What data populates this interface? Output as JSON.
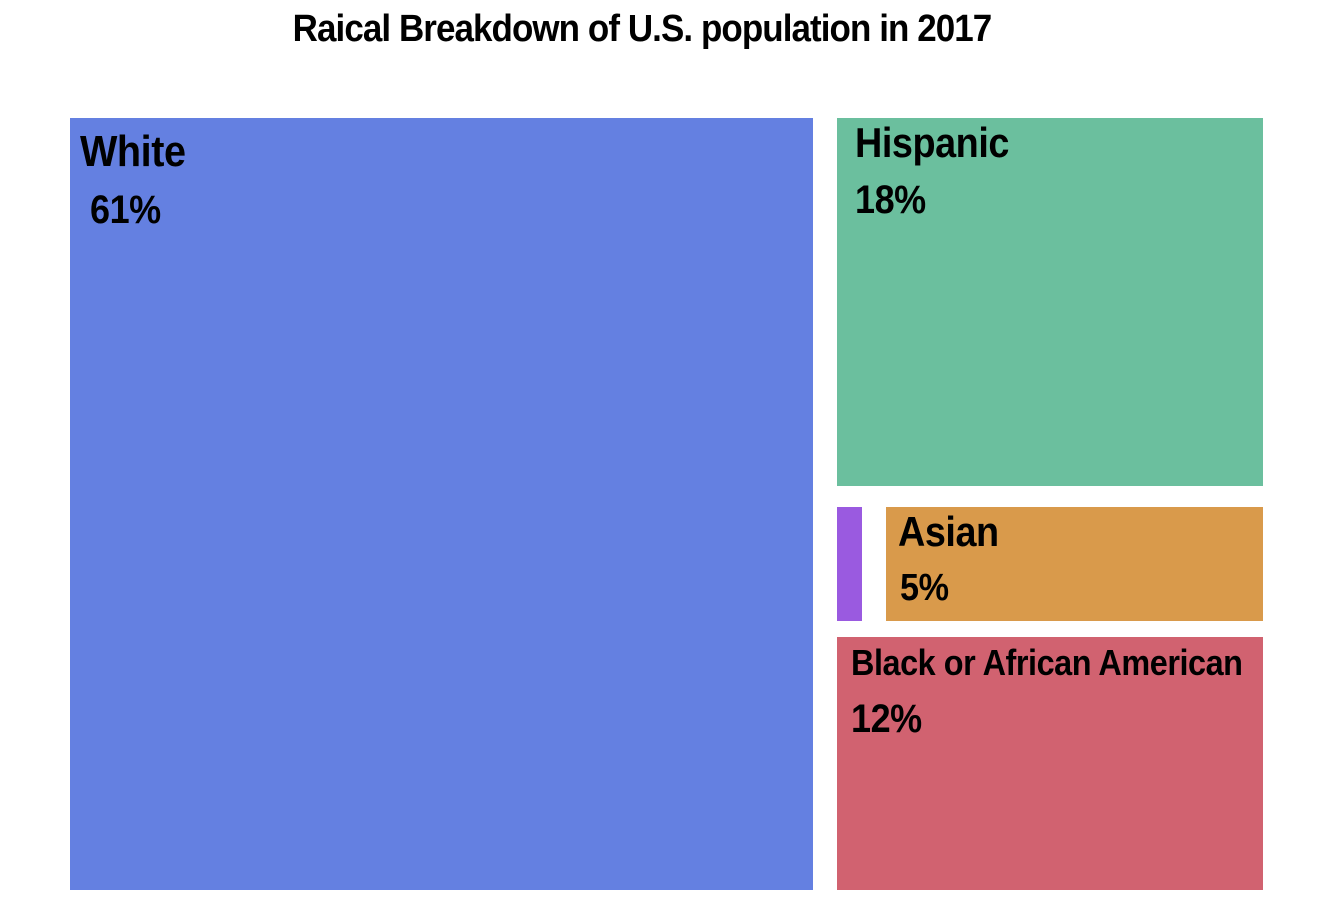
{
  "chart_data": {
    "type": "treemap",
    "title": "Raical Breakdown of U.S. population in 2017",
    "tiles": [
      {
        "name": "White",
        "value_label": "61%",
        "value": 61,
        "color": "#6480e1"
      },
      {
        "name": "Hispanic",
        "value_label": "18%",
        "value": 18,
        "color": "#6bbf9e"
      },
      {
        "name": "",
        "value_label": "",
        "value": 2,
        "color": "#9a5ae0"
      },
      {
        "name": "Asian",
        "value_label": "5%",
        "value": 5,
        "color": "#d99a4b"
      },
      {
        "name": "Black or African American",
        "value_label": "12%",
        "value": 12,
        "color": "#d16270"
      }
    ]
  }
}
